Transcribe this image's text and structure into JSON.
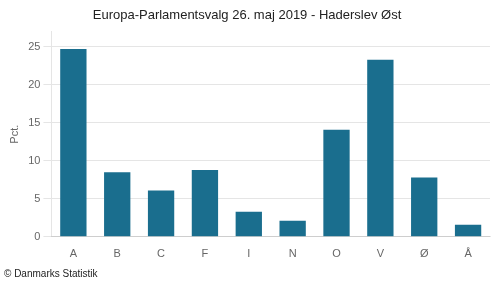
{
  "chart_data": {
    "type": "bar",
    "title": "Europa-Parlamentsvalg 26. maj 2019 - Haderslev Øst",
    "categories": [
      "A",
      "B",
      "C",
      "F",
      "I",
      "N",
      "O",
      "V",
      "Ø",
      "Å"
    ],
    "values": [
      24.7,
      8.5,
      6.1,
      8.8,
      3.3,
      2.1,
      14.1,
      23.3,
      7.8,
      1.6
    ],
    "color": "#1a6e8e",
    "ylabel": "Pct.",
    "annotations": [
      "© Danmarks Statistik"
    ],
    "ylim": [
      0,
      27
    ],
    "yticks": [
      0,
      5,
      10,
      15,
      20,
      25
    ],
    "grid": true
  }
}
